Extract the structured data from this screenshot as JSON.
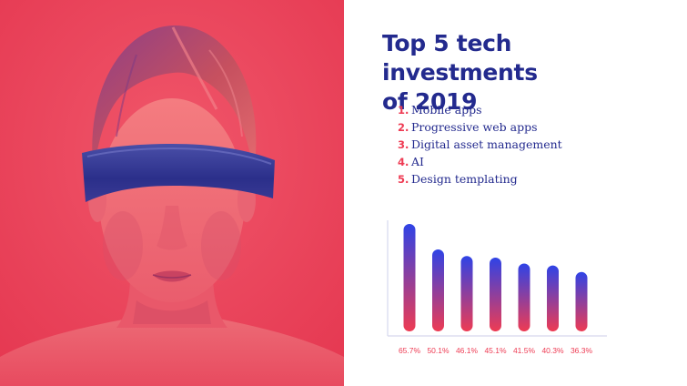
{
  "slide": {
    "title_line1": "Top 5 tech investments",
    "title_line2": "of 2019",
    "accent_color": "#ee3b53",
    "primary_color": "#232a8e",
    "photo_description_icon": "duotone-woman-vr-headset-photo"
  },
  "investments": [
    {
      "number": "1.",
      "label": "Mobile apps"
    },
    {
      "number": "2.",
      "label": "Progressive web apps"
    },
    {
      "number": "3.",
      "label": "Digital asset management"
    },
    {
      "number": "4.",
      "label": "AI"
    },
    {
      "number": "5.",
      "label": "Design templating"
    }
  ],
  "chart_data": {
    "type": "bar",
    "title": "",
    "xlabel": "",
    "ylabel": "",
    "categories": [
      "65.7%",
      "50.1%",
      "46.1%",
      "45.1%",
      "41.5%",
      "40.3%",
      "36.3%"
    ],
    "values": [
      65.7,
      50.1,
      46.1,
      45.1,
      41.5,
      40.3,
      36.3
    ],
    "ylim": [
      0,
      70
    ],
    "grid": false,
    "bar_gradient": [
      "#2f43e6",
      "#ee3b53"
    ]
  }
}
